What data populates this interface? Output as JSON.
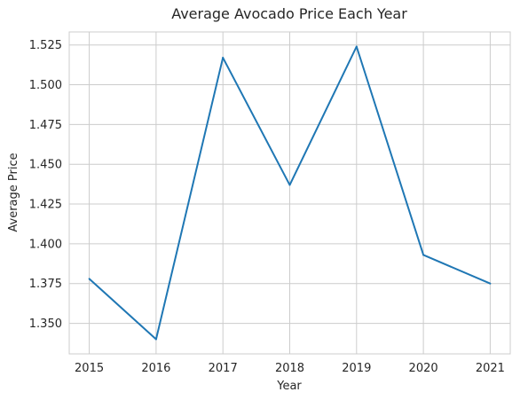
{
  "chart_data": {
    "type": "line",
    "title": "Average Avocado Price Each Year",
    "xlabel": "Year",
    "ylabel": "Average Price",
    "x": [
      2015,
      2016,
      2017,
      2018,
      2019,
      2020,
      2021
    ],
    "x_tick_labels": [
      "2015",
      "2016",
      "2017",
      "2018",
      "2019",
      "2020",
      "2021"
    ],
    "y": [
      1.378,
      1.34,
      1.517,
      1.437,
      1.524,
      1.393,
      1.375
    ],
    "y_ticks": [
      1.35,
      1.375,
      1.4,
      1.425,
      1.45,
      1.475,
      1.5,
      1.525
    ],
    "y_tick_labels": [
      "1.350",
      "1.375",
      "1.400",
      "1.425",
      "1.450",
      "1.475",
      "1.500",
      "1.525"
    ],
    "xlim": [
      2014.7,
      2021.3
    ],
    "ylim": [
      1.3308,
      1.5332
    ],
    "grid": true,
    "line_color": "#1f77b4"
  }
}
